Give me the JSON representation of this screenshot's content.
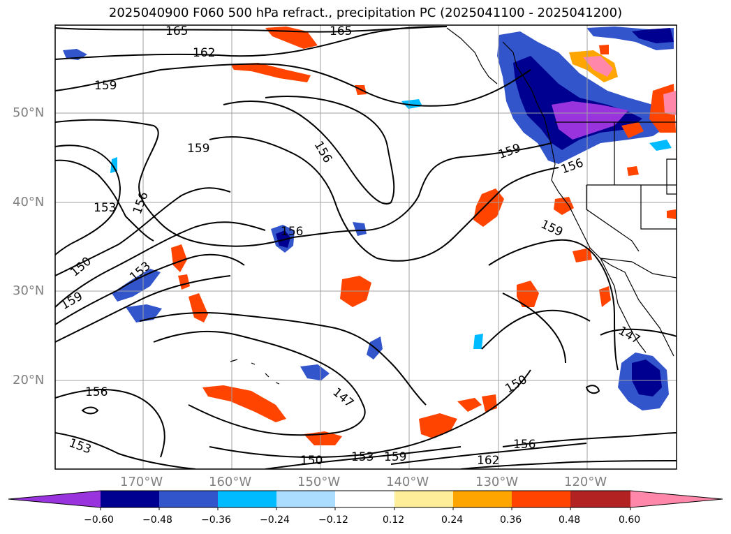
{
  "title": "2025040900 F060 500 hPa refract., precipitation PC (2025041100 - 2025041200)",
  "lat_labels": [
    "50°N",
    "40°N",
    "30°N",
    "20°N"
  ],
  "lon_labels": [
    "170°W",
    "160°W",
    "150°W",
    "140°W",
    "130°W",
    "120°W"
  ],
  "colorbar": {
    "ticks": [
      "−0.60",
      "−0.48",
      "−0.36",
      "−0.24",
      "−0.12",
      "0.12",
      "0.24",
      "0.36",
      "0.48",
      "0.60"
    ],
    "colors": [
      "#9933dd",
      "#000090",
      "#3355cc",
      "#00bbff",
      "#aaddff",
      "#ffffff",
      "#ffee99",
      "#ffa500",
      "#ff4400",
      "#b22222",
      "#ff88aa"
    ],
    "extend": "both"
  },
  "contour_labels": [
    "165",
    "165",
    "162",
    "159",
    "159",
    "156",
    "156",
    "153",
    "156",
    "153",
    "150",
    "159",
    "159",
    "156",
    "159",
    "156",
    "147",
    "150",
    "147",
    "150",
    "153",
    "159",
    "156",
    "162",
    "153"
  ],
  "contour_color": "#000000",
  "gridline_color": "#a0a0a0"
}
